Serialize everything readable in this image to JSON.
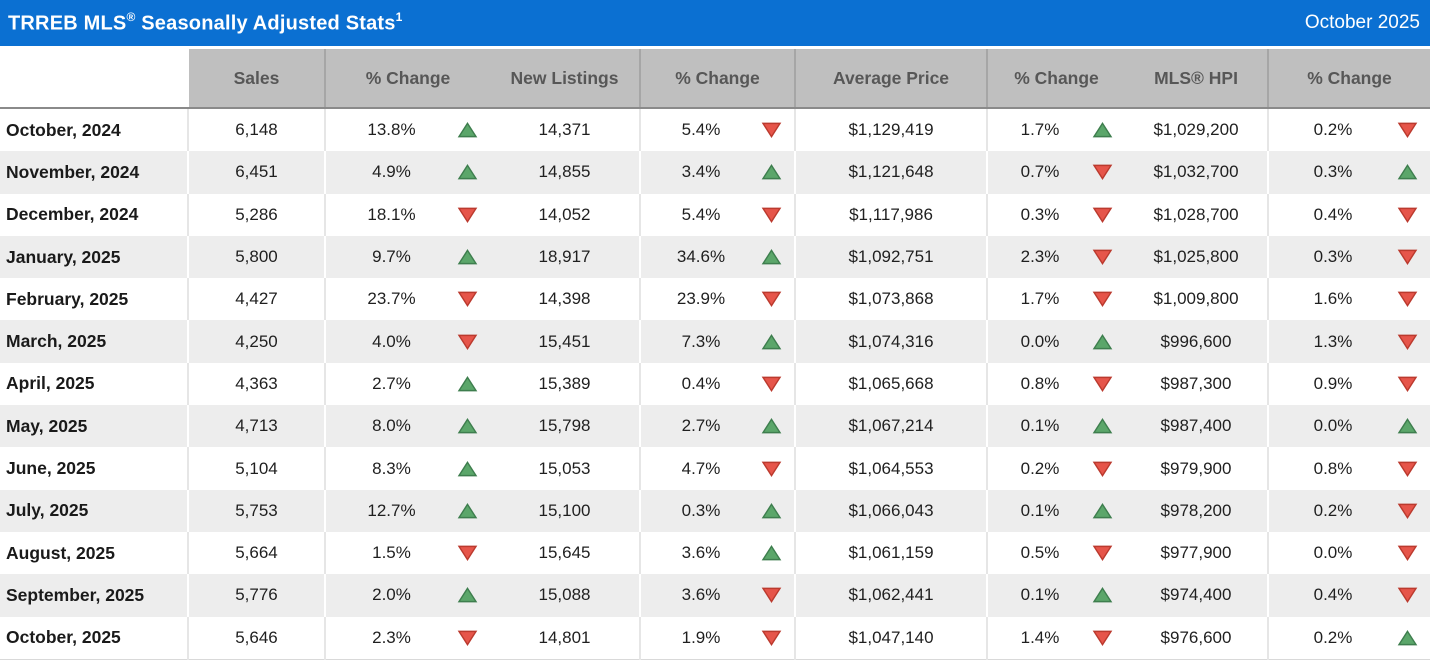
{
  "titlebar": {
    "title_prefix": "TRREB MLS",
    "title_reg": "®",
    "title_suffix": " Seasonally Adjusted Stats",
    "title_footnote": "1",
    "period": "October 2025"
  },
  "colors": {
    "titlebar_bg": "#0b70d2",
    "header_row_bg": "#bfbfbf",
    "header_text": "#575757",
    "alt_row_bg": "#ededed",
    "trend_up": "#5ba66a",
    "trend_down": "#e6554a"
  },
  "chart_data": {
    "type": "table",
    "title": "TRREB MLS® Seasonally Adjusted Stats",
    "title_footnote_marker": "1",
    "period_label": "October 2025",
    "columns": [
      "",
      "Sales",
      "% Change",
      "New Listings",
      "% Change",
      "Average Price",
      "% Change",
      "MLS® HPI",
      "% Change"
    ],
    "rows": [
      {
        "month": "October, 2024",
        "sales": "6,148",
        "sales_change": "13.8%",
        "sales_trend": "up",
        "new_listings": "14,371",
        "new_listings_change": "5.4%",
        "new_listings_trend": "down",
        "average_price": "$1,129,419",
        "average_price_change": "1.7%",
        "average_price_trend": "up",
        "hpi": "$1,029,200",
        "hpi_change": "0.2%",
        "hpi_trend": "down"
      },
      {
        "month": "November, 2024",
        "sales": "6,451",
        "sales_change": "4.9%",
        "sales_trend": "up",
        "new_listings": "14,855",
        "new_listings_change": "3.4%",
        "new_listings_trend": "up",
        "average_price": "$1,121,648",
        "average_price_change": "0.7%",
        "average_price_trend": "down",
        "hpi": "$1,032,700",
        "hpi_change": "0.3%",
        "hpi_trend": "up"
      },
      {
        "month": "December, 2024",
        "sales": "5,286",
        "sales_change": "18.1%",
        "sales_trend": "down",
        "new_listings": "14,052",
        "new_listings_change": "5.4%",
        "new_listings_trend": "down",
        "average_price": "$1,117,986",
        "average_price_change": "0.3%",
        "average_price_trend": "down",
        "hpi": "$1,028,700",
        "hpi_change": "0.4%",
        "hpi_trend": "down"
      },
      {
        "month": "January, 2025",
        "sales": "5,800",
        "sales_change": "9.7%",
        "sales_trend": "up",
        "new_listings": "18,917",
        "new_listings_change": "34.6%",
        "new_listings_trend": "up",
        "average_price": "$1,092,751",
        "average_price_change": "2.3%",
        "average_price_trend": "down",
        "hpi": "$1,025,800",
        "hpi_change": "0.3%",
        "hpi_trend": "down"
      },
      {
        "month": "February, 2025",
        "sales": "4,427",
        "sales_change": "23.7%",
        "sales_trend": "down",
        "new_listings": "14,398",
        "new_listings_change": "23.9%",
        "new_listings_trend": "down",
        "average_price": "$1,073,868",
        "average_price_change": "1.7%",
        "average_price_trend": "down",
        "hpi": "$1,009,800",
        "hpi_change": "1.6%",
        "hpi_trend": "down"
      },
      {
        "month": "March, 2025",
        "sales": "4,250",
        "sales_change": "4.0%",
        "sales_trend": "down",
        "new_listings": "15,451",
        "new_listings_change": "7.3%",
        "new_listings_trend": "up",
        "average_price": "$1,074,316",
        "average_price_change": "0.0%",
        "average_price_trend": "up",
        "hpi": "$996,600",
        "hpi_change": "1.3%",
        "hpi_trend": "down"
      },
      {
        "month": "April, 2025",
        "sales": "4,363",
        "sales_change": "2.7%",
        "sales_trend": "up",
        "new_listings": "15,389",
        "new_listings_change": "0.4%",
        "new_listings_trend": "down",
        "average_price": "$1,065,668",
        "average_price_change": "0.8%",
        "average_price_trend": "down",
        "hpi": "$987,300",
        "hpi_change": "0.9%",
        "hpi_trend": "down"
      },
      {
        "month": "May, 2025",
        "sales": "4,713",
        "sales_change": "8.0%",
        "sales_trend": "up",
        "new_listings": "15,798",
        "new_listings_change": "2.7%",
        "new_listings_trend": "up",
        "average_price": "$1,067,214",
        "average_price_change": "0.1%",
        "average_price_trend": "up",
        "hpi": "$987,400",
        "hpi_change": "0.0%",
        "hpi_trend": "up"
      },
      {
        "month": "June, 2025",
        "sales": "5,104",
        "sales_change": "8.3%",
        "sales_trend": "up",
        "new_listings": "15,053",
        "new_listings_change": "4.7%",
        "new_listings_trend": "down",
        "average_price": "$1,064,553",
        "average_price_change": "0.2%",
        "average_price_trend": "down",
        "hpi": "$979,900",
        "hpi_change": "0.8%",
        "hpi_trend": "down"
      },
      {
        "month": "July, 2025",
        "sales": "5,753",
        "sales_change": "12.7%",
        "sales_trend": "up",
        "new_listings": "15,100",
        "new_listings_change": "0.3%",
        "new_listings_trend": "up",
        "average_price": "$1,066,043",
        "average_price_change": "0.1%",
        "average_price_trend": "up",
        "hpi": "$978,200",
        "hpi_change": "0.2%",
        "hpi_trend": "down"
      },
      {
        "month": "August, 2025",
        "sales": "5,664",
        "sales_change": "1.5%",
        "sales_trend": "down",
        "new_listings": "15,645",
        "new_listings_change": "3.6%",
        "new_listings_trend": "up",
        "average_price": "$1,061,159",
        "average_price_change": "0.5%",
        "average_price_trend": "down",
        "hpi": "$977,900",
        "hpi_change": "0.0%",
        "hpi_trend": "down"
      },
      {
        "month": "September, 2025",
        "sales": "5,776",
        "sales_change": "2.0%",
        "sales_trend": "up",
        "new_listings": "15,088",
        "new_listings_change": "3.6%",
        "new_listings_trend": "down",
        "average_price": "$1,062,441",
        "average_price_change": "0.1%",
        "average_price_trend": "up",
        "hpi": "$974,400",
        "hpi_change": "0.4%",
        "hpi_trend": "down"
      },
      {
        "month": "October, 2025",
        "sales": "5,646",
        "sales_change": "2.3%",
        "sales_trend": "down",
        "new_listings": "14,801",
        "new_listings_change": "1.9%",
        "new_listings_trend": "down",
        "average_price": "$1,047,140",
        "average_price_change": "1.4%",
        "average_price_trend": "down",
        "hpi": "$976,600",
        "hpi_change": "0.2%",
        "hpi_trend": "up"
      }
    ]
  }
}
